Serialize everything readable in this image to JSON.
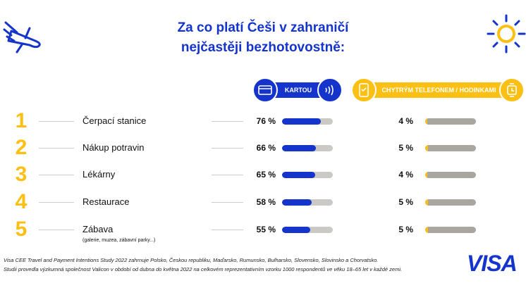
{
  "title_line1": "Za co platí Češi v zahraničí",
  "title_line2": "nejčastěji bezhotovostně:",
  "colors": {
    "blue": "#1434CB",
    "yellow": "#FCC015",
    "card_track": "#CBC9C6",
    "phone_track": "#A9A59F"
  },
  "chart_data": {
    "type": "bar",
    "title": "Za co platí Češi v zahraničí nejčastěji bezhotovostně:",
    "categories": [
      "Čerpací stanice",
      "Nákup potravin",
      "Lékárny",
      "Restaurace",
      "Zábava"
    ],
    "ranks": [
      "1",
      "2",
      "3",
      "4",
      "5"
    ],
    "category_notes": [
      "",
      "",
      "",
      "",
      "(galerie, muzea, zábavní parky...)"
    ],
    "series": [
      {
        "name": "KARTOU",
        "values": [
          76,
          66,
          65,
          58,
          55
        ],
        "labels": [
          "76 %",
          "66 %",
          "65 %",
          "58 %",
          "55 %"
        ]
      },
      {
        "name": "CHYTRÝM TELEFONEM / HODINKAMI",
        "values": [
          4,
          5,
          4,
          5,
          5
        ],
        "labels": [
          "4 %",
          "5 %",
          "4 %",
          "5 %",
          "5 %"
        ]
      }
    ],
    "ylim": [
      0,
      100
    ]
  },
  "footer": {
    "line1": "Visa CEE Travel and Payment Intentions Study 2022 zahrnuje Polsko, Českou republiku, Maďarsko, Rumunsko, Bulharsko, Slovensko, Slovinsko a Chorvatsko.",
    "line2": "Studii provedla výzkumná společnost Valicon v období od dubna do května 2022 na celkovém reprezentativním vzorku 1000 respondentů ve věku 18–65 let v každé zemi.",
    "logo": "VISA"
  }
}
